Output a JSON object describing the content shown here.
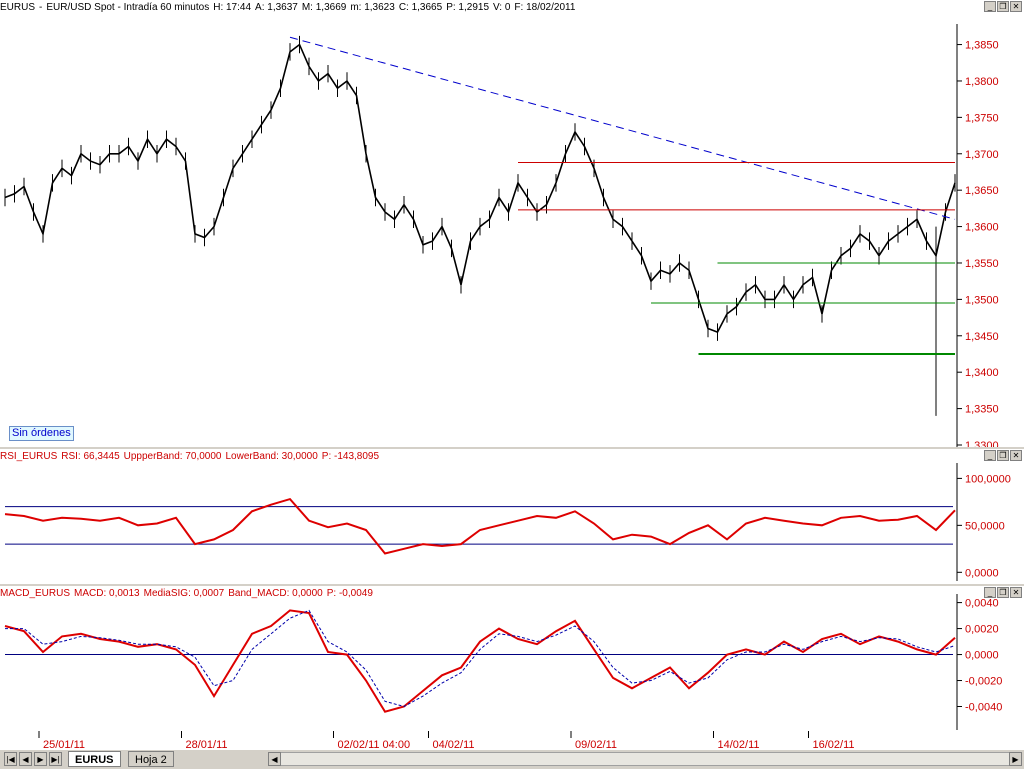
{
  "main_panel": {
    "title_items": [
      "EURUS",
      "-",
      "EUR/USD Spot - Intradía 60 minutos",
      "H: 17:44",
      "A: 1,3637",
      "M: 1,3669",
      "m: 1,3623",
      "C: 1,3665",
      "P: 1,2915",
      "V: 0",
      "F: 18/02/2011"
    ],
    "badge": "Sin órdenes"
  },
  "rsi_panel": {
    "title_items": [
      "RSI_EURUS",
      "RSI: 66,3445",
      "UppperBand: 70,0000",
      "LowerBand: 30,0000",
      "P: -143,8095"
    ]
  },
  "macd_panel": {
    "title_items": [
      "MACD_EURUS",
      "MACD: 0,0013",
      "MediaSIG: 0,0007",
      "Band_MACD: 0,0000",
      "P: -0,0049"
    ]
  },
  "x_axis_labels": [
    "25/01/11",
    "28/01/11",
    "02/02/11 04:00",
    "04/02/11",
    "09/02/11",
    "14/02/11",
    "16/02/11"
  ],
  "bottom_bar": {
    "tabs": [
      "EURUS",
      "Hoja 2"
    ]
  },
  "colors": {
    "price": "#000000",
    "trend": "#0000cc",
    "resistance": "#cc0000",
    "support": "#008800",
    "rsi": "#dd0000",
    "band": "#000080",
    "macd": "#dd0000",
    "signal": "#0000aa"
  },
  "chart_data": [
    {
      "type": "line",
      "title": "EURUS - EUR/USD Spot - Intradía 60 minutos",
      "ylim": [
        1.33,
        1.387
      ],
      "yticks": [
        "1,3850",
        "1,3800",
        "1,3750",
        "1,3700",
        "1,3650",
        "1,3600",
        "1,3550",
        "1,3500",
        "1,3450",
        "1,3400",
        "1,3350",
        "1,3300"
      ],
      "series": [
        {
          "x": [
            0,
            2,
            4,
            6,
            8,
            10,
            12,
            14,
            16,
            18,
            20,
            22,
            24,
            26,
            28,
            30,
            32,
            34,
            36,
            38,
            40,
            42,
            44,
            46,
            48,
            50,
            52,
            54,
            56,
            58,
            60,
            62,
            64,
            66,
            68,
            70,
            72,
            74,
            76,
            78,
            80,
            82,
            84,
            86,
            88,
            90,
            92,
            94,
            96,
            98,
            100,
            102,
            104,
            106,
            108,
            110,
            112,
            114,
            116,
            118,
            120,
            122,
            124,
            126,
            128,
            130,
            132,
            134,
            136,
            138,
            140,
            142,
            144,
            146,
            148,
            150,
            152,
            154,
            156,
            158,
            160,
            162,
            164,
            166,
            168,
            170,
            172,
            174,
            176,
            178,
            180,
            182,
            184,
            186,
            188,
            190,
            192,
            194,
            196,
            198,
            200
          ],
          "values": [
            1.364,
            1.3645,
            1.3655,
            1.362,
            1.359,
            1.366,
            1.368,
            1.367,
            1.37,
            1.369,
            1.3685,
            1.37,
            1.37,
            1.371,
            1.369,
            1.372,
            1.37,
            1.372,
            1.371,
            1.369,
            1.359,
            1.3585,
            1.36,
            1.364,
            1.368,
            1.37,
            1.372,
            1.374,
            1.376,
            1.379,
            1.384,
            1.385,
            1.382,
            1.38,
            1.381,
            1.379,
            1.38,
            1.378,
            1.37,
            1.364,
            1.362,
            1.361,
            1.363,
            1.361,
            1.3575,
            1.358,
            1.36,
            1.357,
            1.352,
            1.358,
            1.36,
            1.361,
            1.364,
            1.362,
            1.366,
            1.364,
            1.362,
            1.363,
            1.366,
            1.37,
            1.373,
            1.371,
            1.368,
            1.364,
            1.361,
            1.36,
            1.358,
            1.356,
            1.3525,
            1.354,
            1.3535,
            1.355,
            1.354,
            1.35,
            1.346,
            1.3455,
            1.348,
            1.349,
            1.351,
            1.352,
            1.35,
            1.35,
            1.352,
            1.35,
            1.352,
            1.353,
            1.348,
            1.354,
            1.356,
            1.357,
            1.359,
            1.358,
            1.356,
            1.358,
            1.359,
            1.36,
            1.361,
            1.358,
            1.356,
            1.362,
            1.366
          ]
        }
      ],
      "lines": [
        {
          "name": "trend",
          "style": "dashed",
          "from": [
            60,
            1.386
          ],
          "to": [
            200,
            1.361
          ]
        },
        {
          "name": "resistance-1",
          "from": [
            108,
            1.3688
          ],
          "to": [
            200,
            1.3688
          ]
        },
        {
          "name": "resistance-2",
          "from": [
            108,
            1.3623
          ],
          "to": [
            200,
            1.3623
          ]
        },
        {
          "name": "support-1",
          "from": [
            150,
            1.355
          ],
          "to": [
            200,
            1.355
          ]
        },
        {
          "name": "support-2",
          "from": [
            136,
            1.3495
          ],
          "to": [
            200,
            1.3495
          ]
        },
        {
          "name": "support-3",
          "from": [
            146,
            1.3425
          ],
          "to": [
            200,
            1.3425
          ]
        }
      ],
      "spike": {
        "x": 196,
        "low": 1.334,
        "high": 1.36
      }
    },
    {
      "type": "line",
      "title": "RSI_EURUS",
      "ylim": [
        -5,
        110
      ],
      "yticks": [
        "100,0000",
        "50,0000",
        "0,0000"
      ],
      "bands": [
        70,
        30
      ],
      "series": [
        {
          "name": "RSI",
          "x": [
            0,
            4,
            8,
            12,
            16,
            20,
            24,
            28,
            32,
            36,
            40,
            44,
            48,
            52,
            56,
            60,
            64,
            68,
            72,
            76,
            80,
            84,
            88,
            92,
            96,
            100,
            104,
            108,
            112,
            116,
            120,
            124,
            128,
            132,
            136,
            140,
            144,
            148,
            152,
            156,
            160,
            164,
            168,
            172,
            176,
            180,
            184,
            188,
            192,
            196,
            200
          ],
          "values": [
            62,
            60,
            55,
            58,
            57,
            55,
            58,
            50,
            52,
            58,
            30,
            35,
            45,
            65,
            72,
            78,
            55,
            48,
            52,
            45,
            20,
            25,
            30,
            28,
            30,
            45,
            50,
            55,
            60,
            58,
            65,
            52,
            35,
            40,
            38,
            30,
            42,
            50,
            35,
            52,
            58,
            55,
            52,
            50,
            58,
            60,
            55,
            56,
            60,
            45,
            66
          ]
        }
      ]
    },
    {
      "type": "line",
      "title": "MACD_EURUS",
      "ylim": [
        -0.0055,
        0.0042
      ],
      "yticks": [
        "0,0040",
        "0,0020",
        "0,0000",
        "-0,0020",
        "-0,0040"
      ],
      "band": 0,
      "series": [
        {
          "name": "MACD",
          "x": [
            0,
            4,
            8,
            12,
            16,
            20,
            24,
            28,
            32,
            36,
            40,
            44,
            48,
            52,
            56,
            60,
            64,
            68,
            72,
            76,
            80,
            84,
            88,
            92,
            96,
            100,
            104,
            108,
            112,
            116,
            120,
            124,
            128,
            132,
            136,
            140,
            144,
            148,
            152,
            156,
            160,
            164,
            168,
            172,
            176,
            180,
            184,
            188,
            192,
            196,
            200
          ],
          "values": [
            0.0022,
            0.0018,
            0.0002,
            0.0014,
            0.0016,
            0.0012,
            0.001,
            0.0006,
            0.0008,
            0.0004,
            -0.0008,
            -0.0032,
            -0.0008,
            0.0016,
            0.0022,
            0.0034,
            0.0032,
            0.0002,
            0.0,
            -0.002,
            -0.0044,
            -0.004,
            -0.0028,
            -0.0016,
            -0.001,
            0.001,
            0.002,
            0.0012,
            0.0008,
            0.0018,
            0.0026,
            0.0004,
            -0.0018,
            -0.0026,
            -0.0018,
            -0.001,
            -0.0026,
            -0.0014,
            0.0,
            0.0004,
            0.0,
            0.001,
            0.0002,
            0.0012,
            0.0016,
            0.0008,
            0.0014,
            0.001,
            0.0004,
            0.0,
            0.0013
          ]
        },
        {
          "name": "Signal",
          "x": [
            0,
            4,
            8,
            12,
            16,
            20,
            24,
            28,
            32,
            36,
            40,
            44,
            48,
            52,
            56,
            60,
            64,
            68,
            72,
            76,
            80,
            84,
            88,
            92,
            96,
            100,
            104,
            108,
            112,
            116,
            120,
            124,
            128,
            132,
            136,
            140,
            144,
            148,
            152,
            156,
            160,
            164,
            168,
            172,
            176,
            180,
            184,
            188,
            192,
            196,
            200
          ],
          "values": [
            0.002,
            0.002,
            0.0008,
            0.001,
            0.0014,
            0.0013,
            0.0011,
            0.0008,
            0.0008,
            0.0006,
            -0.0002,
            -0.0024,
            -0.002,
            0.0004,
            0.0016,
            0.0028,
            0.0034,
            0.001,
            0.0002,
            -0.0012,
            -0.0036,
            -0.004,
            -0.0032,
            -0.0022,
            -0.0014,
            0.0004,
            0.0016,
            0.0014,
            0.001,
            0.0015,
            0.0022,
            0.001,
            -0.001,
            -0.0022,
            -0.002,
            -0.0013,
            -0.0022,
            -0.0018,
            -0.0004,
            0.0002,
            0.0002,
            0.0008,
            0.0004,
            0.001,
            0.0014,
            0.001,
            0.0013,
            0.0012,
            0.0006,
            0.0002,
            0.0007
          ]
        }
      ]
    }
  ]
}
